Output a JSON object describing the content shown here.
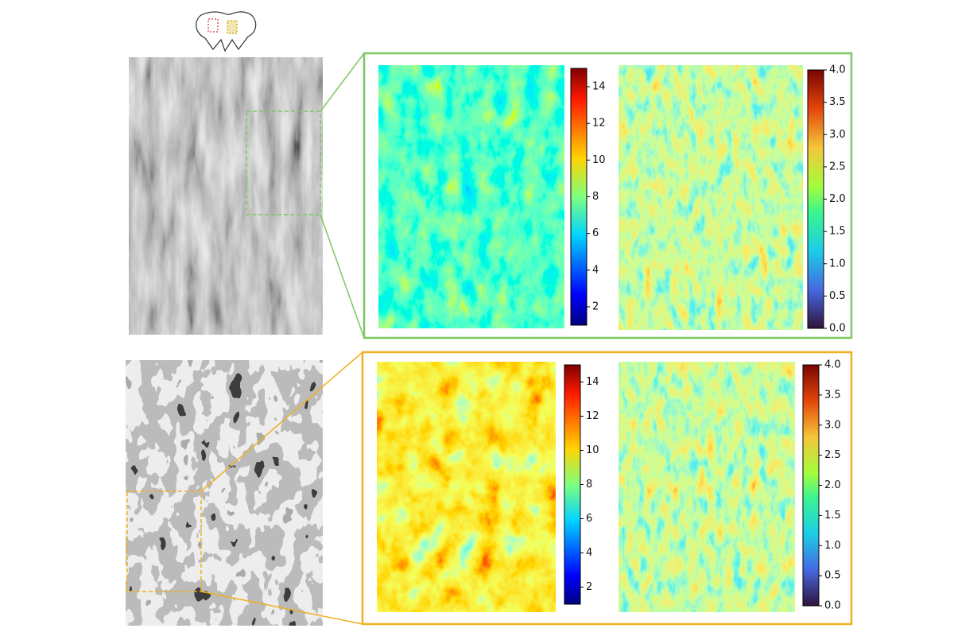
{
  "panels": [
    {
      "colorbars": [
        {
          "lim": [
            1,
            15
          ],
          "ticks": [
            2,
            4,
            6,
            8,
            10,
            12,
            14
          ]
        },
        {
          "lim": [
            0,
            4
          ],
          "ticks": [
            {
              "value": 0,
              "label": "0.0"
            },
            {
              "value": 0.5,
              "label": "0.5"
            },
            {
              "value": 1,
              "label": "1.0"
            },
            {
              "value": 1.5,
              "label": "1.5"
            },
            {
              "value": 2,
              "label": "2.0"
            },
            {
              "value": 2.5,
              "label": "2.5"
            },
            {
              "value": 3,
              "label": "3.0"
            },
            {
              "value": 3.5,
              "label": "3.5"
            },
            {
              "value": 4,
              "label": "4.0"
            }
          ]
        }
      ]
    },
    {
      "colorbars": [
        {
          "lim": [
            1,
            15
          ],
          "ticks": [
            2,
            4,
            6,
            8,
            10,
            12,
            14
          ]
        },
        {
          "lim": [
            0,
            4
          ],
          "ticks": [
            {
              "value": 0,
              "label": "0.0"
            },
            {
              "value": 0.5,
              "label": "0.5"
            },
            {
              "value": 1,
              "label": "1.0"
            },
            {
              "value": 1.5,
              "label": "1.5"
            },
            {
              "value": 2,
              "label": "2.0"
            },
            {
              "value": 2.5,
              "label": "2.5"
            },
            {
              "value": 3,
              "label": "3.0"
            },
            {
              "value": 3.5,
              "label": "3.5"
            },
            {
              "value": 4,
              "label": "4.0"
            }
          ]
        }
      ]
    }
  ]
}
